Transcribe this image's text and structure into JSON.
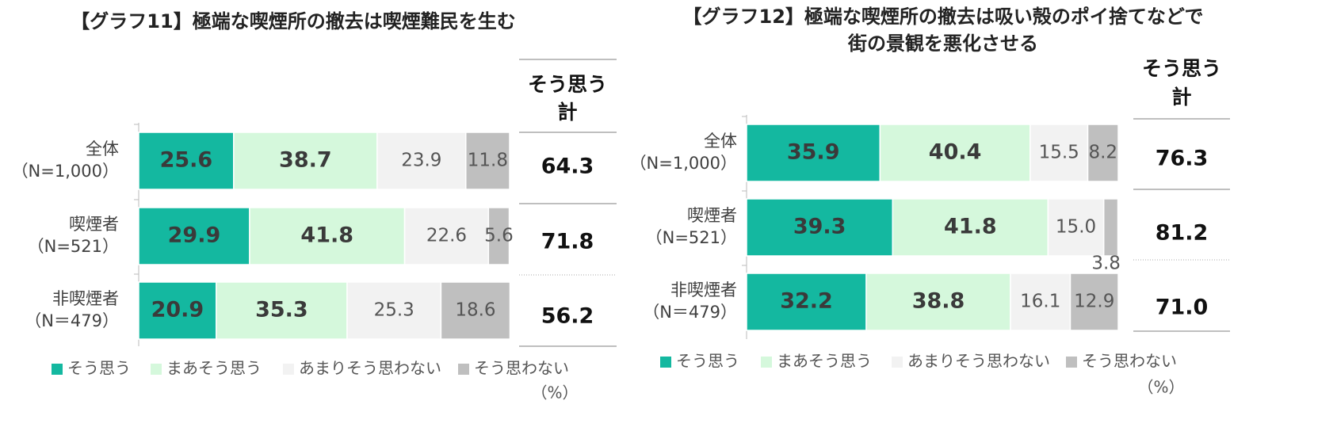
{
  "chart_data": [
    {
      "type": "bar",
      "orientation": "horizontal",
      "stacked": true,
      "title": [
        "【グラフ11】極端な喫煙所の撤去は喫煙難民を生む"
      ],
      "categories": [
        [
          "全体",
          "（N=1,000）"
        ],
        [
          "喫煙者",
          "（N=521）"
        ],
        [
          "非喫煙者",
          "（N＝479）"
        ]
      ],
      "xlim": [
        0,
        100
      ],
      "series": [
        {
          "name": "そう思う",
          "color": "#14b8a0",
          "values": [
            25.6,
            29.9,
            20.9
          ]
        },
        {
          "name": "まあそう思う",
          "color": "#d5f8dc",
          "values": [
            38.7,
            41.8,
            35.3
          ]
        },
        {
          "name": "あまりそう思わない",
          "color": "#f2f2f2",
          "values": [
            23.9,
            22.6,
            25.3
          ]
        },
        {
          "name": "そう思わない",
          "color": "#bfbfbf",
          "values": [
            11.8,
            5.6,
            18.6
          ]
        }
      ],
      "total_header": [
        "そう思う",
        "計"
      ],
      "totals": {
        "values": [
          64.3,
          71.8,
          56.2
        ]
      },
      "unit_label": "（%）"
    },
    {
      "type": "bar",
      "orientation": "horizontal",
      "stacked": true,
      "title": [
        "【グラフ12】極端な喫煙所の撤去は吸い殻のポイ捨てなどで",
        "街の景観を悪化させる"
      ],
      "categories": [
        [
          "全体",
          "（N=1,000）"
        ],
        [
          "喫煙者",
          "（N=521）"
        ],
        [
          "非喫煙者",
          "（N＝479）"
        ]
      ],
      "xlim": [
        0,
        100
      ],
      "series": [
        {
          "name": "そう思う",
          "color": "#14b8a0",
          "values": [
            35.9,
            39.3,
            32.2
          ]
        },
        {
          "name": "まあそう思う",
          "color": "#d5f8dc",
          "values": [
            40.4,
            41.8,
            38.8
          ]
        },
        {
          "name": "あまりそう思わない",
          "color": "#f2f2f2",
          "values": [
            15.5,
            15,
            16.1
          ],
          "value_labels": [
            "15.5",
            "15.0",
            "16.1"
          ]
        },
        {
          "name": "そう思わない",
          "color": "#bfbfbf",
          "values": [
            8.2,
            3.8,
            12.9
          ]
        }
      ],
      "total_header": [
        "そう思う",
        "計"
      ],
      "totals": {
        "values": [
          76.3,
          81.2,
          71
        ],
        "value_labels": [
          "76.3",
          "81.2",
          "71.0"
        ]
      },
      "unit_label": "（%）"
    }
  ]
}
